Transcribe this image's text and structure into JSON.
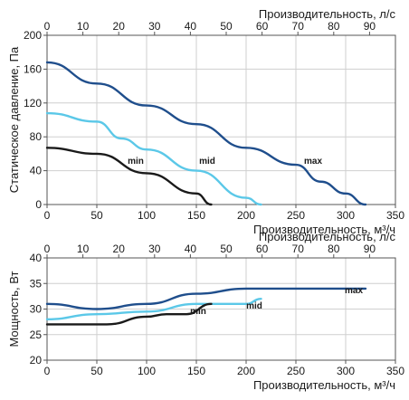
{
  "chart_data": [
    {
      "type": "line",
      "ylabel": "Статическое давление, Па",
      "xlabel": "Производительность, м³/ч",
      "x2label": "Производительность, л/с",
      "xlim": [
        0,
        350
      ],
      "xticks": [
        0,
        50,
        100,
        150,
        200,
        250,
        300,
        350
      ],
      "x2lim": [
        0,
        97.22
      ],
      "x2ticks": [
        0,
        10,
        20,
        30,
        40,
        50,
        60,
        70,
        80,
        90
      ],
      "ylim": [
        0,
        200
      ],
      "yticks": [
        0,
        40,
        80,
        120,
        160,
        200
      ],
      "grid": true,
      "series": [
        {
          "name": "max",
          "color": "#1f4e8c",
          "x": [
            0,
            50,
            100,
            150,
            200,
            250,
            275,
            300,
            320
          ],
          "y": [
            168,
            143,
            117,
            95,
            67,
            47,
            27,
            13,
            0
          ]
        },
        {
          "name": "mid",
          "color": "#5bc8e8",
          "x": [
            0,
            50,
            75,
            100,
            150,
            200,
            215
          ],
          "y": [
            108,
            98,
            78,
            65,
            40,
            8,
            0
          ]
        },
        {
          "name": "min",
          "color": "#1a1a1a",
          "x": [
            0,
            50,
            100,
            150,
            165
          ],
          "y": [
            67,
            60,
            37,
            13,
            0
          ]
        }
      ]
    },
    {
      "type": "line",
      "ylabel": "Мощность, Вт",
      "xlabel": "Производительность, м³/ч",
      "x2label": "Производительность, л/с",
      "xlim": [
        0,
        350
      ],
      "xticks": [
        0,
        50,
        100,
        150,
        200,
        250,
        300,
        350
      ],
      "x2lim": [
        0,
        97.22
      ],
      "x2ticks": [
        0,
        10,
        20,
        30,
        40,
        50,
        60,
        70,
        80,
        90
      ],
      "ylim": [
        20,
        40
      ],
      "yticks": [
        20,
        25,
        30,
        35,
        40
      ],
      "grid": true,
      "series": [
        {
          "name": "max",
          "color": "#1f4e8c",
          "x": [
            0,
            50,
            100,
            150,
            200,
            250,
            320
          ],
          "y": [
            31,
            30,
            31,
            33,
            34,
            34,
            34
          ]
        },
        {
          "name": "mid",
          "color": "#5bc8e8",
          "x": [
            0,
            50,
            100,
            150,
            200,
            215
          ],
          "y": [
            28,
            29,
            29.5,
            31,
            31,
            32
          ]
        },
        {
          "name": "min",
          "color": "#1a1a1a",
          "x": [
            0,
            60,
            100,
            120,
            140,
            165
          ],
          "y": [
            27,
            27,
            28.5,
            29,
            29,
            31
          ]
        }
      ]
    }
  ]
}
